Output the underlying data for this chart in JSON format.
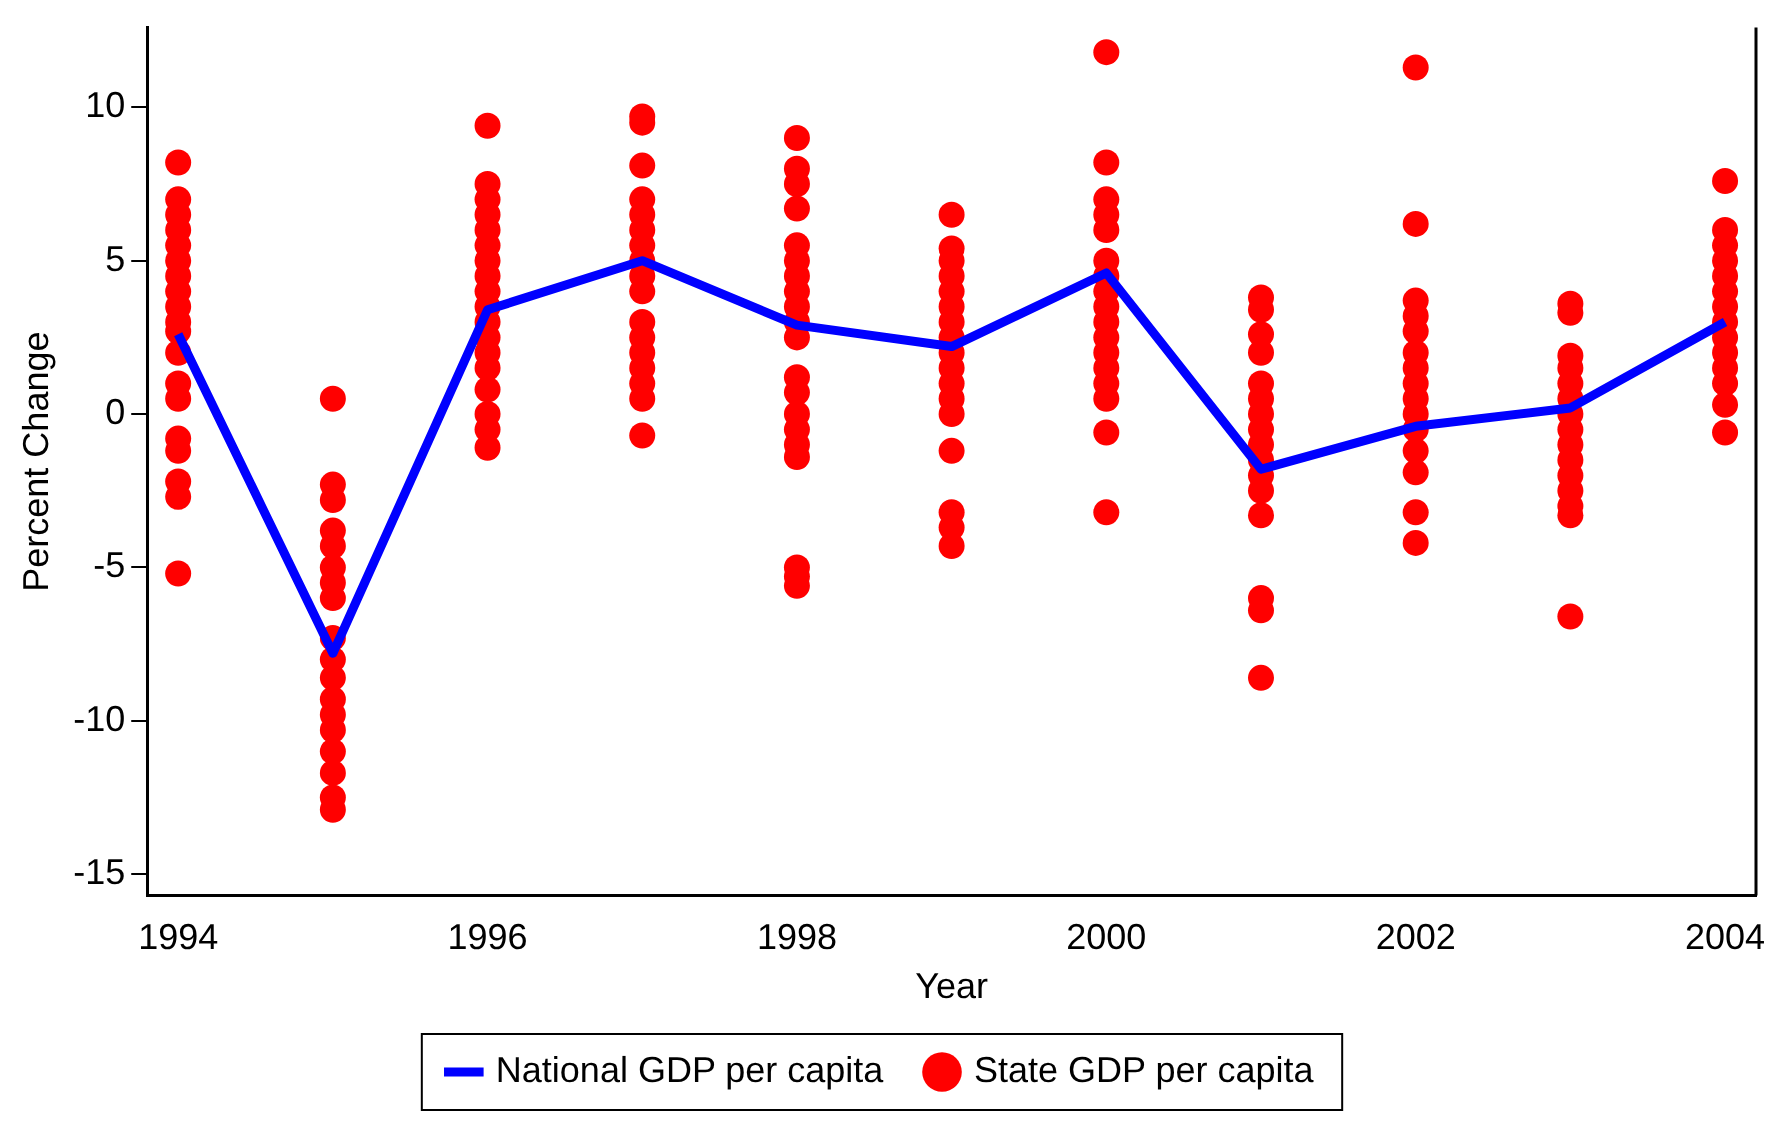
{
  "chart_data": {
    "type": "scatter",
    "xlabel": "Year",
    "ylabel": "Percent Change",
    "xlim": [
      1993.8,
      2004.2
    ],
    "xticks": [
      1994,
      1996,
      1998,
      2000,
      2002,
      2004
    ],
    "ylim": [
      -15.7,
      12.6
    ],
    "yticks": [
      -15,
      -10,
      -5,
      0,
      5,
      10
    ],
    "grid": false,
    "legend": "bottom",
    "series": [
      {
        "name": "State GDP per capita",
        "type": "scatter",
        "marker": "circle",
        "color": "#ff0000",
        "x": [
          1994,
          1994,
          1994,
          1994,
          1994,
          1994,
          1994,
          1994,
          1994,
          1994,
          1994,
          1994,
          1994,
          1994,
          1994,
          1994,
          1994,
          1994,
          1994,
          1995,
          1995,
          1995,
          1995,
          1995,
          1995,
          1995,
          1995,
          1995,
          1995,
          1995,
          1995,
          1995,
          1995,
          1995,
          1995,
          1995,
          1995,
          1996,
          1996,
          1996,
          1996,
          1996,
          1996,
          1996,
          1996,
          1996,
          1996,
          1996,
          1996,
          1996,
          1996,
          1996,
          1996,
          1996,
          1996,
          1997,
          1997,
          1997,
          1997,
          1997,
          1997,
          1997,
          1997,
          1997,
          1997,
          1997,
          1997,
          1997,
          1997,
          1997,
          1997,
          1997,
          1998,
          1998,
          1998,
          1998,
          1998,
          1998,
          1998,
          1998,
          1998,
          1998,
          1998,
          1998,
          1998,
          1998,
          1998,
          1998,
          1998,
          1998,
          1998,
          1998,
          1999,
          1999,
          1999,
          1999,
          1999,
          1999,
          1999,
          1999,
          1999,
          1999,
          1999,
          1999,
          1999,
          1999,
          1999,
          1999,
          1999,
          2000,
          2000,
          2000,
          2000,
          2000,
          2000,
          2000,
          2000,
          2000,
          2000,
          2000,
          2000,
          2000,
          2000,
          2000,
          2000,
          2000,
          2001,
          2001,
          2001,
          2001,
          2001,
          2001,
          2001,
          2001,
          2001,
          2001,
          2001,
          2001,
          2001,
          2001,
          2001,
          2001,
          2002,
          2002,
          2002,
          2002,
          2002,
          2002,
          2002,
          2002,
          2002,
          2002,
          2002,
          2002,
          2002,
          2002,
          2002,
          2003,
          2003,
          2003,
          2003,
          2003,
          2003,
          2003,
          2003,
          2003,
          2003,
          2003,
          2003,
          2003,
          2003,
          2003,
          2004,
          2004,
          2004,
          2004,
          2004,
          2004,
          2004,
          2004,
          2004,
          2004,
          2004,
          2004,
          2004,
          2004
        ],
        "values": [
          8.2,
          7,
          6.5,
          6,
          5.5,
          5,
          4.5,
          4,
          3.5,
          3,
          2.7,
          2,
          1,
          0.5,
          -0.8,
          -1.2,
          -2.2,
          -2.7,
          -5.2,
          0.5,
          -2.3,
          -2.8,
          -3.8,
          -4.3,
          -5,
          -5.5,
          -6,
          -7.3,
          -8,
          -8.6,
          -9.3,
          -9.8,
          -10.3,
          -11,
          -11.7,
          -12.5,
          -12.9,
          9.4,
          7.5,
          7,
          6.5,
          6,
          5.5,
          5,
          4.5,
          4,
          3.5,
          3,
          2.5,
          2,
          1.5,
          0.8,
          0,
          -0.5,
          -1.1,
          9.7,
          9.5,
          8.1,
          7,
          6.5,
          6,
          5.5,
          5,
          4.5,
          4,
          3,
          2.5,
          2,
          1.5,
          1,
          0.5,
          -0.7,
          9,
          8,
          7.5,
          6.7,
          5.5,
          5,
          4.5,
          4,
          3.5,
          3,
          2.5,
          1.2,
          0.7,
          0,
          -0.5,
          -1,
          -1.4,
          -5,
          -5.3,
          -5.6,
          6.5,
          5.4,
          5,
          4.5,
          4,
          3.5,
          3,
          2.5,
          2,
          1.5,
          1,
          0.5,
          0,
          -1.2,
          -3.2,
          -3.7,
          -4.3,
          11.8,
          8.2,
          7,
          6.5,
          6,
          5,
          4.5,
          4,
          3.5,
          3,
          2.5,
          2,
          1.5,
          1,
          0.5,
          -0.6,
          -3.2,
          3.8,
          3.4,
          2.6,
          2,
          1,
          0.5,
          0,
          -0.5,
          -1,
          -1.5,
          -2,
          -2.5,
          -3.3,
          -6,
          -6.4,
          -8.6,
          11.3,
          6.2,
          3.7,
          3.2,
          2.7,
          2,
          1.5,
          1,
          0.5,
          0,
          -0.5,
          -1.2,
          -1.9,
          -3.2,
          -4.2,
          3.6,
          3.3,
          1.9,
          1.5,
          1,
          0.5,
          0,
          -0.5,
          -1,
          -1.5,
          -2,
          -2.5,
          -3,
          -3.3,
          -6.6,
          7.6,
          6,
          5.5,
          5,
          4.5,
          4,
          3.5,
          3,
          2.5,
          2,
          1.5,
          1,
          0.3,
          -0.6
        ]
      },
      {
        "name": "National GDP per capita",
        "type": "line",
        "marker": "none",
        "line_style": "solid",
        "color": "#0000ff",
        "x": [
          1994,
          1995,
          1996,
          1997,
          1998,
          1999,
          2000,
          2001,
          2002,
          2003,
          2004
        ],
        "values": [
          2.6,
          -7.8,
          3.4,
          5,
          2.9,
          2.2,
          4.6,
          -1.8,
          -0.4,
          0.2,
          3.0
        ]
      }
    ]
  }
}
